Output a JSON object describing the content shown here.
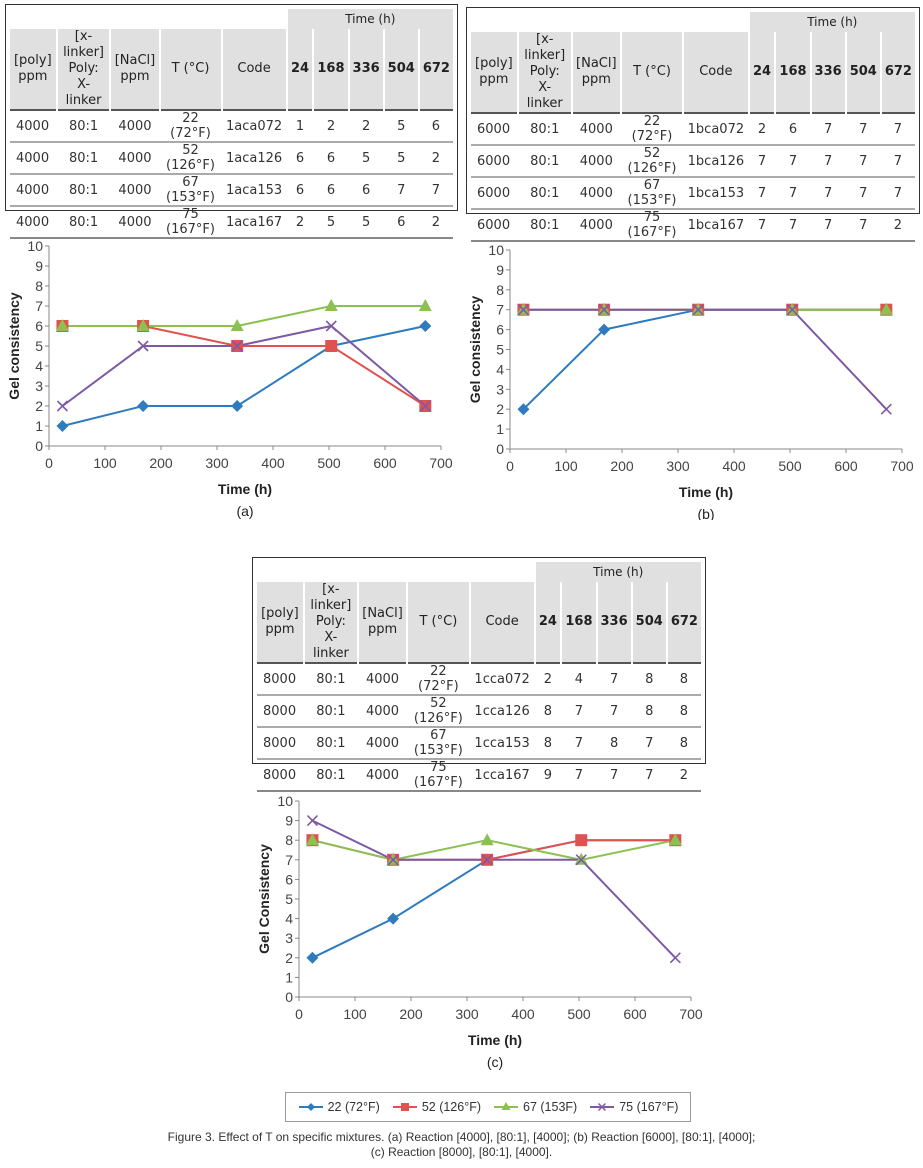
{
  "tables": [
    {
      "id": "a",
      "time_header": "Time (h)",
      "headers": [
        "[poly]\nppm",
        "[x-linker]\nPoly:\nX-linker",
        "[NaCl]\nppm",
        "T (°C)",
        "Code",
        "24",
        "168",
        "336",
        "504",
        "672"
      ],
      "rows": [
        [
          "4000",
          "80:1",
          "4000",
          "22 (72°F)",
          "1aca072",
          "1",
          "2",
          "2",
          "5",
          "6"
        ],
        [
          "4000",
          "80:1",
          "4000",
          "52 (126°F)",
          "1aca126",
          "6",
          "6",
          "5",
          "5",
          "2"
        ],
        [
          "4000",
          "80:1",
          "4000",
          "67 (153°F)",
          "1aca153",
          "6",
          "6",
          "6",
          "7",
          "7"
        ],
        [
          "4000",
          "80:1",
          "4000",
          "75 (167°F)",
          "1aca167",
          "2",
          "5",
          "5",
          "6",
          "2"
        ]
      ]
    },
    {
      "id": "b",
      "time_header": "Time (h)",
      "headers": [
        "[poly]\nppm",
        "[x-linker]\nPoly:\nX-linker",
        "[NaCl]\nppm",
        "T (°C)",
        "Code",
        "24",
        "168",
        "336",
        "504",
        "672"
      ],
      "rows": [
        [
          "6000",
          "80:1",
          "4000",
          "22 (72°F)",
          "1bca072",
          "2",
          "6",
          "7",
          "7",
          "7"
        ],
        [
          "6000",
          "80:1",
          "4000",
          "52 (126°F)",
          "1bca126",
          "7",
          "7",
          "7",
          "7",
          "7"
        ],
        [
          "6000",
          "80:1",
          "4000",
          "67 (153°F)",
          "1bca153",
          "7",
          "7",
          "7",
          "7",
          "7"
        ],
        [
          "6000",
          "80:1",
          "4000",
          "75 (167°F)",
          "1bca167",
          "7",
          "7",
          "7",
          "7",
          "2"
        ]
      ]
    },
    {
      "id": "c",
      "time_header": "Time (h)",
      "headers": [
        "[poly]\nppm",
        "[x-linker]\nPoly:\nX-linker",
        "[NaCl]\nppm",
        "T (°C)",
        "Code",
        "24",
        "168",
        "336",
        "504",
        "672"
      ],
      "rows": [
        [
          "8000",
          "80:1",
          "4000",
          "22 (72°F)",
          "1cca072",
          "2",
          "4",
          "7",
          "8",
          "8"
        ],
        [
          "8000",
          "80:1",
          "4000",
          "52 (126°F)",
          "1cca126",
          "8",
          "7",
          "7",
          "8",
          "8"
        ],
        [
          "8000",
          "80:1",
          "4000",
          "67 (153°F)",
          "1cca153",
          "8",
          "7",
          "8",
          "7",
          "8"
        ],
        [
          "8000",
          "80:1",
          "4000",
          "75 (167°F)",
          "1cca167",
          "9",
          "7",
          "7",
          "7",
          "2"
        ]
      ]
    }
  ],
  "chart_data": [
    {
      "id": "a",
      "type": "line",
      "title": "",
      "panel_label": "(a)",
      "xlabel": "Time (h)",
      "ylabel": "Gel consistency",
      "xlim": [
        0,
        700
      ],
      "ylim": [
        0,
        10
      ],
      "xticks": [
        0,
        100,
        200,
        300,
        400,
        500,
        600,
        700
      ],
      "yticks": [
        0,
        1,
        2,
        3,
        4,
        5,
        6,
        7,
        8,
        9,
        10
      ],
      "x": [
        24,
        168,
        336,
        504,
        672
      ],
      "series": [
        {
          "name": "22 (72°F)",
          "values": [
            1,
            2,
            2,
            5,
            6
          ]
        },
        {
          "name": "52 (126°F)",
          "values": [
            6,
            6,
            5,
            5,
            2
          ]
        },
        {
          "name": "67 (153F)",
          "values": [
            6,
            6,
            6,
            7,
            7
          ]
        },
        {
          "name": "75 (167°F)",
          "values": [
            2,
            5,
            5,
            6,
            2
          ]
        }
      ]
    },
    {
      "id": "b",
      "type": "line",
      "title": "",
      "panel_label": "(b)",
      "xlabel": "Time (h)",
      "ylabel": "Gel consistency",
      "xlim": [
        0,
        700
      ],
      "ylim": [
        0,
        10
      ],
      "xticks": [
        0,
        100,
        200,
        300,
        400,
        500,
        600,
        700
      ],
      "yticks": [
        0,
        1,
        2,
        3,
        4,
        5,
        6,
        7,
        8,
        9,
        10
      ],
      "x": [
        24,
        168,
        336,
        504,
        672
      ],
      "series": [
        {
          "name": "22 (72°F)",
          "values": [
            2,
            6,
            7,
            7,
            7
          ]
        },
        {
          "name": "52 (126°F)",
          "values": [
            7,
            7,
            7,
            7,
            7
          ]
        },
        {
          "name": "67 (153F)",
          "values": [
            7,
            7,
            7,
            7,
            7
          ]
        },
        {
          "name": "75 (167°F)",
          "values": [
            7,
            7,
            7,
            7,
            2
          ]
        }
      ]
    },
    {
      "id": "c",
      "type": "line",
      "title": "",
      "panel_label": "(c)",
      "xlabel": "Time (h)",
      "ylabel": "Gel Consistency",
      "xlim": [
        0,
        700
      ],
      "ylim": [
        0,
        10
      ],
      "xticks": [
        0,
        100,
        200,
        300,
        400,
        500,
        600,
        700
      ],
      "yticks": [
        0,
        1,
        2,
        3,
        4,
        5,
        6,
        7,
        8,
        9,
        10
      ],
      "x": [
        24,
        168,
        336,
        504,
        672
      ],
      "series": [
        {
          "name": "22 (72°F)",
          "values": [
            2,
            4,
            7,
            8,
            8
          ]
        },
        {
          "name": "52 (126°F)",
          "values": [
            8,
            7,
            7,
            8,
            8
          ]
        },
        {
          "name": "67 (153F)",
          "values": [
            8,
            7,
            8,
            7,
            8
          ]
        },
        {
          "name": "75 (167°F)",
          "values": [
            9,
            7,
            7,
            7,
            2
          ]
        }
      ]
    }
  ],
  "legend": {
    "placement": "bottom",
    "items": [
      {
        "label": "22 (72°F)",
        "marker": "diamond-icon",
        "color": "#2e7bbf"
      },
      {
        "label": "52 (126°F)",
        "marker": "square-icon",
        "color": "#e0524f"
      },
      {
        "label": "67 (153F)",
        "marker": "triangle-icon",
        "color": "#8cc152"
      },
      {
        "label": "75 (167°F)",
        "marker": "x-icon",
        "color": "#7e5aa6"
      }
    ]
  },
  "caption": {
    "figure_label": "Figure 3.",
    "line1": " Effect of T on specific mixtures. (a) Reaction [4000], [80:1], [4000]; (b) Reaction [6000], [80:1], [4000];",
    "line2": "(c) Reaction [8000], [80:1], [4000]."
  }
}
